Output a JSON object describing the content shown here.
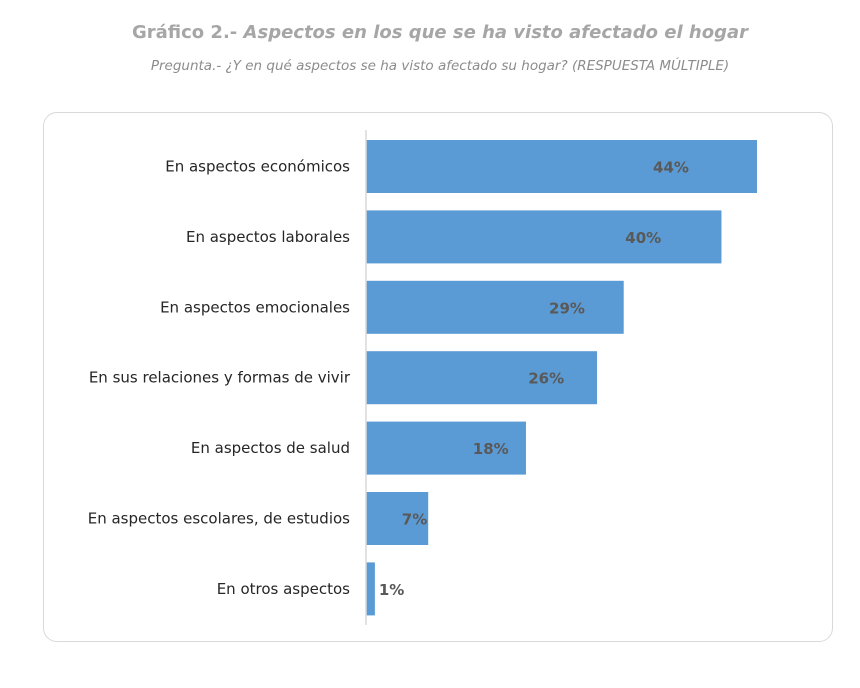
{
  "header": {
    "title_prefix": "Gráfico 2.-",
    "title_main": "Aspectos en los que se ha visto afectado el hogar",
    "subtitle": "Pregunta.- ¿Y en qué aspectos se ha visto afectado su hogar? (RESPUESTA MÚLTIPLE)"
  },
  "chart_data": {
    "type": "bar",
    "orientation": "horizontal",
    "title": "Gráfico 2.- Aspectos en los que se ha visto afectado el hogar",
    "subtitle": "Pregunta.- ¿Y en qué aspectos se ha visto afectado su hogar? (RESPUESTA MÚLTIPLE)",
    "categories": [
      "En aspectos económicos",
      "En aspectos laborales",
      "En aspectos emocionales",
      "En sus relaciones y formas de vivir",
      "En aspectos de salud",
      "En aspectos escolares, de estudios",
      "En otros aspectos"
    ],
    "values": [
      44,
      40,
      29,
      26,
      18,
      7,
      1
    ],
    "data_labels": [
      "44%",
      "40%",
      "29%",
      "26%",
      "18%",
      "7%",
      "1%"
    ],
    "unit": "%",
    "xlim": [
      0,
      47
    ],
    "grid": false,
    "legend": "none",
    "bar_color": "#5b9bd5"
  }
}
